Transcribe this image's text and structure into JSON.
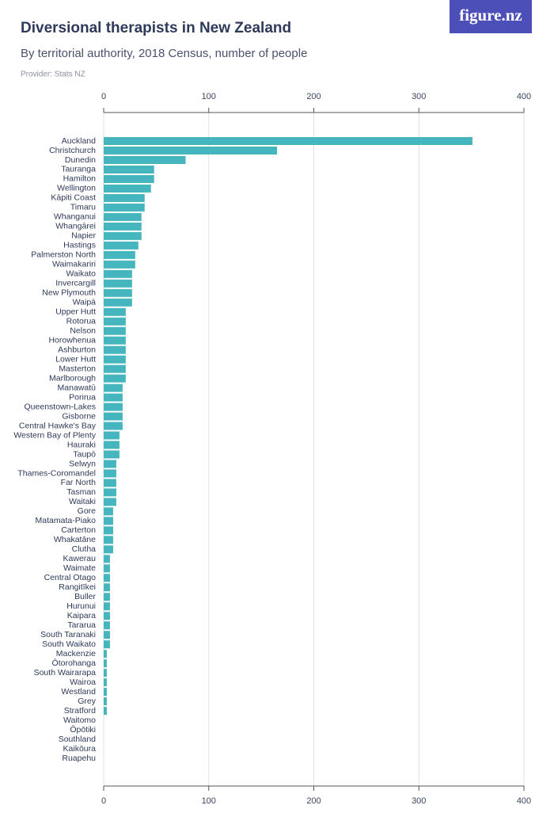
{
  "logo": "figure.nz",
  "chart_data": {
    "type": "bar",
    "orientation": "horizontal",
    "title": "Diversional therapists in New Zealand",
    "subtitle": "By territorial authority, 2018 Census, number of people",
    "source": "Provider: Stats NZ",
    "color": "#45b5be",
    "grid": true,
    "xlim": [
      0,
      400
    ],
    "xticks": [
      0,
      100,
      200,
      300,
      400
    ],
    "categories": [
      "Auckland",
      "Christchurch",
      "Dunedin",
      "Tauranga",
      "Hamilton",
      "Wellington",
      "Kāpiti Coast",
      "Timaru",
      "Whanganui",
      "Whangārei",
      "Napier",
      "Hastings",
      "Palmerston North",
      "Waimakariri",
      "Waikato",
      "Invercargill",
      "New Plymouth",
      "Waipā",
      "Upper Hutt",
      "Rotorua",
      "Nelson",
      "Horowhenua",
      "Ashburton",
      "Lower Hutt",
      "Masterton",
      "Marlborough",
      "Manawatū",
      "Porirua",
      "Queenstown-Lakes",
      "Gisborne",
      "Central Hawke's Bay",
      "Western Bay of Plenty",
      "Hauraki",
      "Taupō",
      "Selwyn",
      "Thames-Coromandel",
      "Far North",
      "Tasman",
      "Waitaki",
      "Gore",
      "Matamata-Piako",
      "Carterton",
      "Whakatāne",
      "Clutha",
      "Kawerau",
      "Waimate",
      "Central Otago",
      "Rangitīkei",
      "Buller",
      "Hurunui",
      "Kaipara",
      "Tararua",
      "South Taranaki",
      "South Waikato",
      "Mackenzie",
      "Ōtorohanga",
      "South Wairarapa",
      "Wairoa",
      "Westland",
      "Grey",
      "Stratford",
      "Waitomo",
      "Ōpōtiki",
      "Southland",
      "Kaikōura",
      "Ruapehu"
    ],
    "values": [
      351,
      165,
      78,
      48,
      48,
      45,
      39,
      39,
      36,
      36,
      36,
      33,
      30,
      30,
      27,
      27,
      27,
      27,
      21,
      21,
      21,
      21,
      21,
      21,
      21,
      21,
      18,
      18,
      18,
      18,
      18,
      15,
      15,
      15,
      12,
      12,
      12,
      12,
      12,
      9,
      9,
      9,
      9,
      9,
      6,
      6,
      6,
      6,
      6,
      6,
      6,
      6,
      6,
      6,
      3,
      3,
      3,
      3,
      3,
      3,
      3,
      0,
      0,
      0,
      0,
      0
    ]
  }
}
